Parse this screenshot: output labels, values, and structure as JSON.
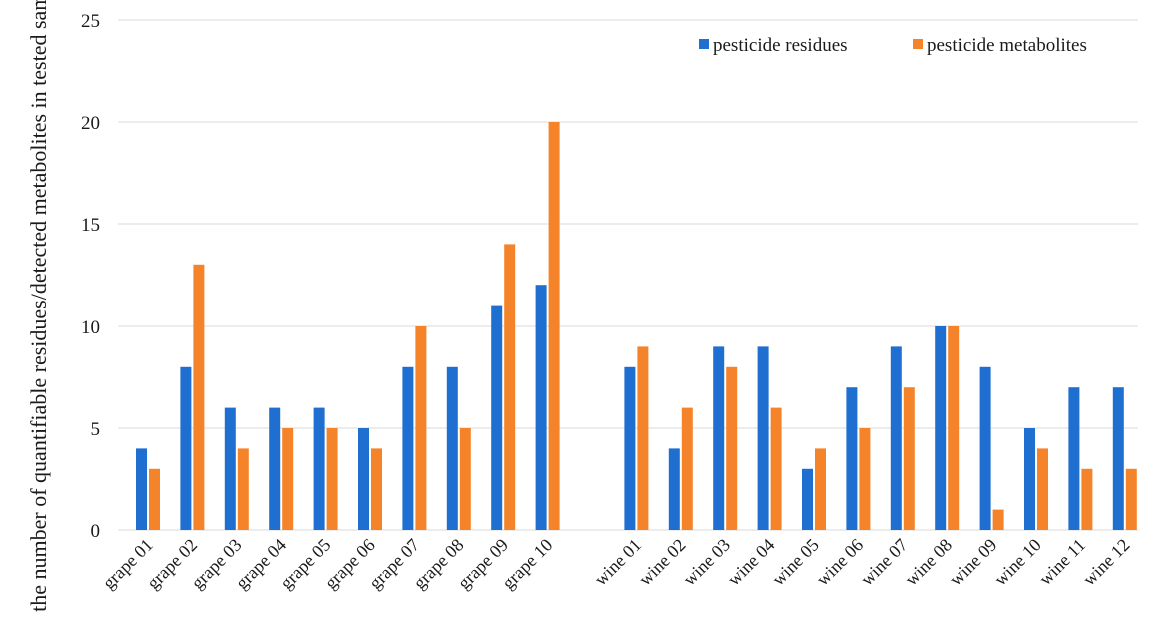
{
  "chart_data": {
    "type": "bar",
    "ylabel": "the number of quantifiable residues/detected metabolites in tested samples",
    "ylim": [
      0,
      25
    ],
    "yticks": [
      0,
      5,
      10,
      15,
      20,
      25
    ],
    "grid": true,
    "legend_position": "top-right",
    "categories": [
      "grape 01",
      "grape 02",
      "grape 03",
      "grape 04",
      "grape 05",
      "grape 06",
      "grape 07",
      "grape 08",
      "grape 09",
      "grape 10",
      "",
      "wine 01",
      "wine 02",
      "wine 03",
      "wine 04",
      "wine 05",
      "wine 06",
      "wine 07",
      "wine 08",
      "wine 09",
      "wine 10",
      "wine 11",
      "wine 12"
    ],
    "series": [
      {
        "name": "pesticide residues",
        "color": "#1f6fd1",
        "values": [
          4,
          8,
          6,
          6,
          6,
          5,
          8,
          8,
          11,
          12,
          null,
          8,
          4,
          9,
          9,
          3,
          7,
          9,
          10,
          8,
          5,
          7,
          7
        ]
      },
      {
        "name": "pesticide metabolites",
        "color": "#f5832a",
        "values": [
          3,
          13,
          4,
          5,
          5,
          4,
          10,
          5,
          14,
          20,
          null,
          9,
          6,
          8,
          6,
          4,
          5,
          7,
          10,
          1,
          4,
          3,
          3
        ]
      }
    ]
  }
}
